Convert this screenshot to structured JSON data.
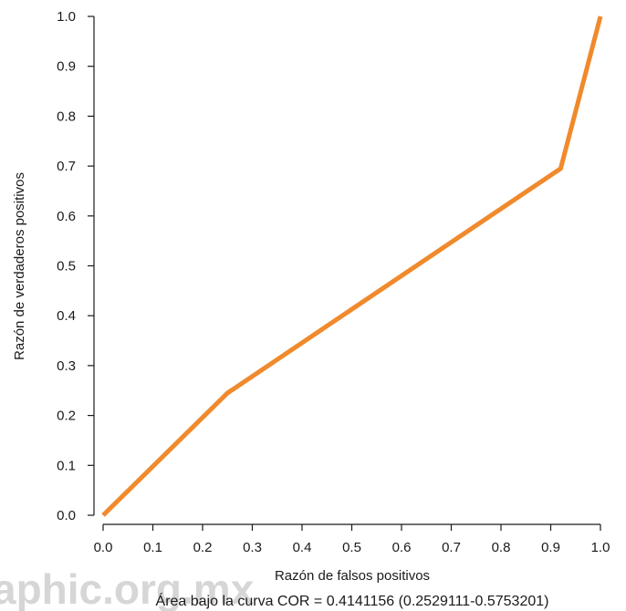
{
  "chart_data": {
    "type": "line",
    "xlabel": "Razón de falsos positivos",
    "ylabel": "Razón de verdaderos positivos",
    "annotation": "Área bajo la curva COR = 0.4141156 (0.2529111-0.5753201)",
    "watermark": "aphic.org.mx",
    "xlim": [
      0,
      1
    ],
    "ylim": [
      0,
      1
    ],
    "xticks": [
      "0.0",
      "0.1",
      "0.2",
      "0.3",
      "0.4",
      "0.5",
      "0.6",
      "0.7",
      "0.8",
      "0.9",
      "1.0"
    ],
    "yticks": [
      "0.0",
      "0.1",
      "0.2",
      "0.3",
      "0.4",
      "0.5",
      "0.6",
      "0.7",
      "0.8",
      "0.9",
      "1.0"
    ],
    "grid": false,
    "series": [
      {
        "color": "#f08a2c",
        "x": [
          0.0,
          0.25,
          0.92,
          1.0
        ],
        "y": [
          0.0,
          0.245,
          0.695,
          1.0
        ]
      }
    ]
  }
}
